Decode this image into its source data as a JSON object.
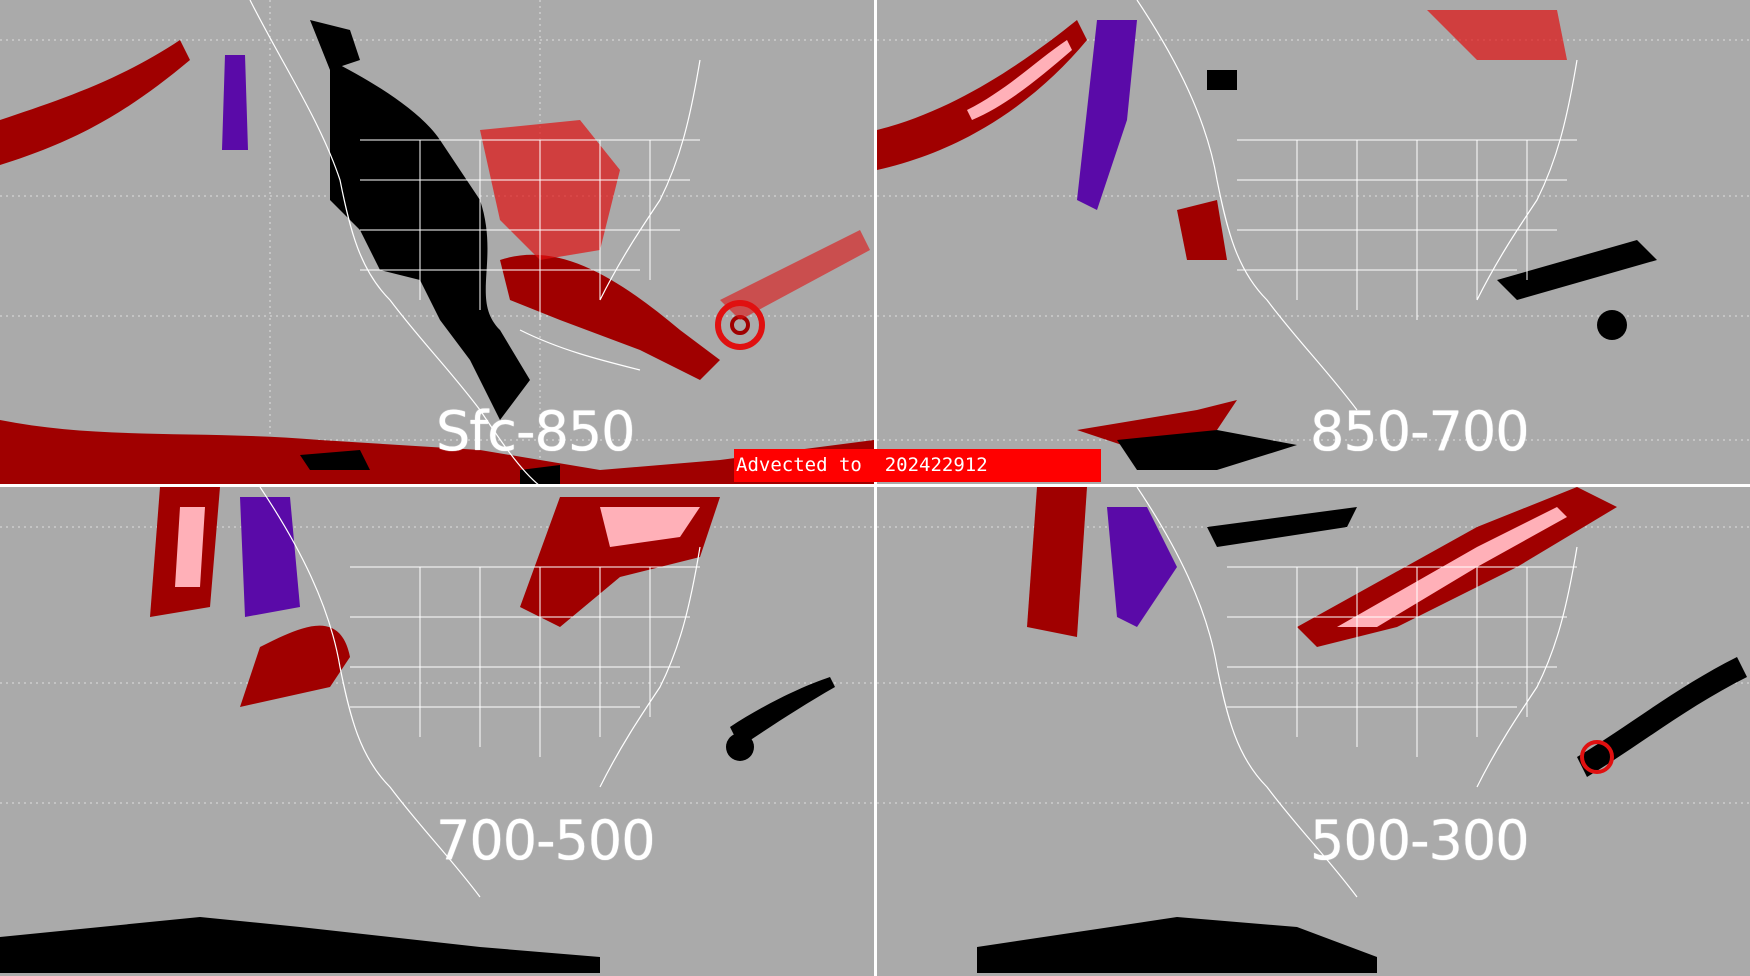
{
  "banner": {
    "text": "Advected to  202422912"
  },
  "panels": [
    {
      "label": "Sfc-850"
    },
    {
      "label": "850-700"
    },
    {
      "label": "700-500"
    },
    {
      "label": "500-300"
    }
  ],
  "legend_colors": {
    "background": "#aaaaaa",
    "dark_red": "#a00000",
    "red": "#e01010",
    "pink": "#ffb0b8",
    "purple": "#5a0aa8",
    "black": "#000000",
    "borders": "#ffffff"
  }
}
